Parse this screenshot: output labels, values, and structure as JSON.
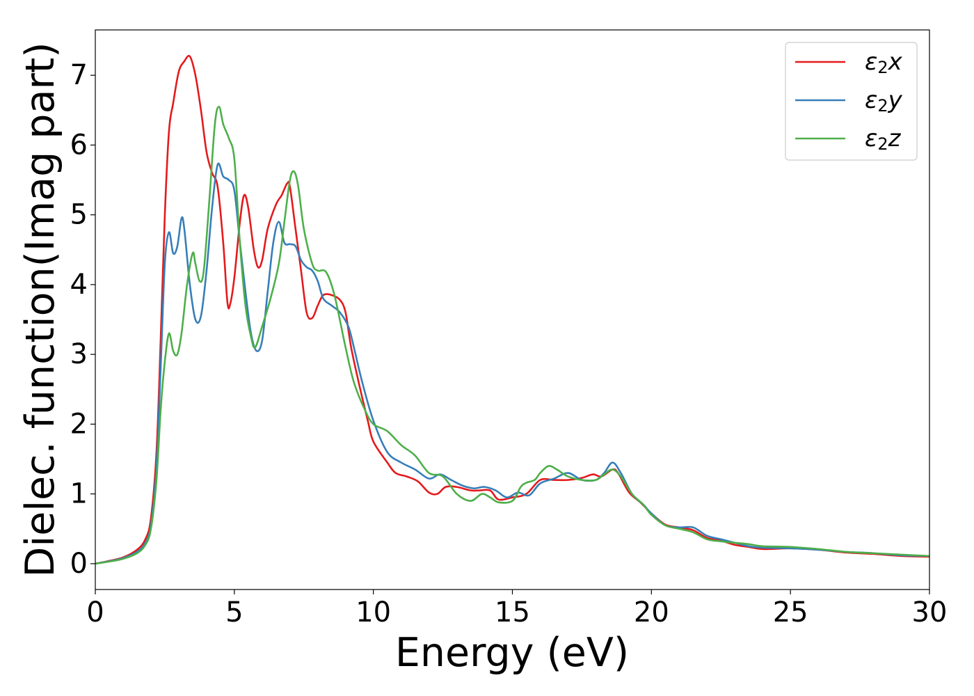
{
  "chart_data": {
    "type": "line",
    "title": "",
    "xlabel": "Energy (eV)",
    "ylabel": "Dielec. function(Imag part)",
    "xlim": [
      0,
      30
    ],
    "ylim": [
      -0.37,
      7.65
    ],
    "xticks": [
      0,
      5,
      10,
      15,
      20,
      25,
      30
    ],
    "yticks": [
      0,
      1,
      2,
      3,
      4,
      5,
      6,
      7
    ],
    "grid": false,
    "legend_position": "top-right",
    "series": [
      {
        "name": "ε2x",
        "legend_base": "ε",
        "legend_sub": "2",
        "legend_tail": "x",
        "color": "#e41a1c",
        "points": [
          [
            0,
            0
          ],
          [
            0.5,
            0.04
          ],
          [
            1.0,
            0.09
          ],
          [
            1.5,
            0.2
          ],
          [
            1.8,
            0.35
          ],
          [
            2.0,
            0.65
          ],
          [
            2.2,
            1.6
          ],
          [
            2.35,
            3.2
          ],
          [
            2.5,
            5.0
          ],
          [
            2.65,
            6.2
          ],
          [
            2.8,
            6.6
          ],
          [
            3.0,
            7.05
          ],
          [
            3.2,
            7.2
          ],
          [
            3.4,
            7.27
          ],
          [
            3.6,
            7.0
          ],
          [
            3.8,
            6.5
          ],
          [
            4.0,
            5.9
          ],
          [
            4.2,
            5.6
          ],
          [
            4.4,
            5.4
          ],
          [
            4.6,
            4.6
          ],
          [
            4.75,
            3.75
          ],
          [
            4.85,
            3.72
          ],
          [
            5.0,
            4.1
          ],
          [
            5.2,
            4.9
          ],
          [
            5.35,
            5.28
          ],
          [
            5.5,
            5.1
          ],
          [
            5.7,
            4.5
          ],
          [
            5.85,
            4.25
          ],
          [
            6.0,
            4.35
          ],
          [
            6.2,
            4.8
          ],
          [
            6.5,
            5.15
          ],
          [
            6.7,
            5.28
          ],
          [
            6.9,
            5.45
          ],
          [
            7.0,
            5.4
          ],
          [
            7.2,
            4.8
          ],
          [
            7.4,
            4.2
          ],
          [
            7.6,
            3.6
          ],
          [
            7.8,
            3.52
          ],
          [
            8.0,
            3.7
          ],
          [
            8.2,
            3.85
          ],
          [
            8.5,
            3.85
          ],
          [
            8.8,
            3.78
          ],
          [
            9.0,
            3.6
          ],
          [
            9.2,
            3.1
          ],
          [
            9.5,
            2.55
          ],
          [
            9.8,
            2.05
          ],
          [
            10.0,
            1.75
          ],
          [
            10.5,
            1.45
          ],
          [
            10.8,
            1.3
          ],
          [
            11.2,
            1.25
          ],
          [
            11.6,
            1.18
          ],
          [
            12.0,
            1.02
          ],
          [
            12.3,
            1.0
          ],
          [
            12.6,
            1.1
          ],
          [
            13.0,
            1.1
          ],
          [
            13.5,
            1.05
          ],
          [
            13.8,
            1.05
          ],
          [
            14.2,
            1.05
          ],
          [
            14.5,
            0.92
          ],
          [
            15.0,
            0.95
          ],
          [
            15.5,
            1.0
          ],
          [
            16.0,
            1.2
          ],
          [
            16.5,
            1.2
          ],
          [
            17.0,
            1.2
          ],
          [
            17.5,
            1.23
          ],
          [
            17.9,
            1.28
          ],
          [
            18.2,
            1.25
          ],
          [
            18.6,
            1.35
          ],
          [
            18.8,
            1.3
          ],
          [
            19.2,
            1.02
          ],
          [
            19.6,
            0.88
          ],
          [
            20.0,
            0.72
          ],
          [
            20.5,
            0.56
          ],
          [
            21.0,
            0.52
          ],
          [
            21.5,
            0.48
          ],
          [
            22.0,
            0.37
          ],
          [
            22.5,
            0.33
          ],
          [
            23.0,
            0.27
          ],
          [
            23.5,
            0.24
          ],
          [
            24.0,
            0.21
          ],
          [
            25.0,
            0.22
          ],
          [
            26.0,
            0.2
          ],
          [
            27.0,
            0.16
          ],
          [
            28.0,
            0.14
          ],
          [
            29.0,
            0.11
          ],
          [
            30.0,
            0.1
          ]
        ]
      },
      {
        "name": "ε2y",
        "legend_base": "ε",
        "legend_sub": "2",
        "legend_tail": "y",
        "color": "#377eb8",
        "points": [
          [
            0,
            0
          ],
          [
            0.5,
            0.035
          ],
          [
            1.0,
            0.08
          ],
          [
            1.5,
            0.17
          ],
          [
            1.8,
            0.3
          ],
          [
            2.0,
            0.55
          ],
          [
            2.2,
            1.4
          ],
          [
            2.35,
            2.8
          ],
          [
            2.5,
            4.3
          ],
          [
            2.65,
            4.75
          ],
          [
            2.8,
            4.45
          ],
          [
            2.95,
            4.55
          ],
          [
            3.1,
            4.95
          ],
          [
            3.2,
            4.8
          ],
          [
            3.4,
            4.0
          ],
          [
            3.6,
            3.5
          ],
          [
            3.8,
            3.55
          ],
          [
            4.0,
            4.2
          ],
          [
            4.2,
            5.1
          ],
          [
            4.4,
            5.72
          ],
          [
            4.6,
            5.55
          ],
          [
            4.8,
            5.5
          ],
          [
            5.0,
            5.35
          ],
          [
            5.2,
            4.6
          ],
          [
            5.4,
            3.9
          ],
          [
            5.6,
            3.3
          ],
          [
            5.8,
            3.05
          ],
          [
            6.0,
            3.2
          ],
          [
            6.2,
            3.9
          ],
          [
            6.4,
            4.6
          ],
          [
            6.6,
            4.9
          ],
          [
            6.8,
            4.6
          ],
          [
            7.0,
            4.58
          ],
          [
            7.2,
            4.55
          ],
          [
            7.4,
            4.35
          ],
          [
            7.6,
            4.25
          ],
          [
            7.8,
            4.2
          ],
          [
            8.0,
            4.05
          ],
          [
            8.2,
            3.8
          ],
          [
            8.5,
            3.7
          ],
          [
            8.8,
            3.6
          ],
          [
            9.1,
            3.4
          ],
          [
            9.3,
            3.1
          ],
          [
            9.6,
            2.6
          ],
          [
            10.0,
            2.05
          ],
          [
            10.5,
            1.6
          ],
          [
            11.0,
            1.45
          ],
          [
            11.5,
            1.35
          ],
          [
            12.0,
            1.22
          ],
          [
            12.4,
            1.28
          ],
          [
            12.8,
            1.2
          ],
          [
            13.2,
            1.12
          ],
          [
            13.6,
            1.08
          ],
          [
            14.0,
            1.1
          ],
          [
            14.4,
            1.05
          ],
          [
            14.8,
            0.95
          ],
          [
            15.2,
            1.02
          ],
          [
            15.6,
            0.98
          ],
          [
            16.0,
            1.15
          ],
          [
            16.5,
            1.22
          ],
          [
            17.0,
            1.3
          ],
          [
            17.5,
            1.2
          ],
          [
            18.0,
            1.2
          ],
          [
            18.3,
            1.3
          ],
          [
            18.6,
            1.45
          ],
          [
            18.9,
            1.3
          ],
          [
            19.3,
            1.0
          ],
          [
            19.7,
            0.85
          ],
          [
            20.0,
            0.72
          ],
          [
            20.5,
            0.55
          ],
          [
            21.0,
            0.52
          ],
          [
            21.5,
            0.52
          ],
          [
            22.0,
            0.4
          ],
          [
            22.5,
            0.35
          ],
          [
            23.0,
            0.3
          ],
          [
            23.5,
            0.25
          ],
          [
            24.0,
            0.23
          ],
          [
            25.0,
            0.22
          ],
          [
            26.0,
            0.2
          ],
          [
            27.0,
            0.17
          ],
          [
            28.0,
            0.15
          ],
          [
            29.0,
            0.12
          ],
          [
            30.0,
            0.11
          ]
        ]
      },
      {
        "name": "ε2z",
        "legend_base": "ε",
        "legend_sub": "2",
        "legend_tail": "z",
        "color": "#4daf4a",
        "points": [
          [
            0,
            0
          ],
          [
            0.5,
            0.03
          ],
          [
            1.0,
            0.07
          ],
          [
            1.5,
            0.15
          ],
          [
            1.8,
            0.27
          ],
          [
            2.0,
            0.5
          ],
          [
            2.2,
            1.2
          ],
          [
            2.35,
            2.2
          ],
          [
            2.5,
            2.9
          ],
          [
            2.65,
            3.3
          ],
          [
            2.8,
            3.05
          ],
          [
            2.95,
            3.0
          ],
          [
            3.1,
            3.3
          ],
          [
            3.3,
            4.0
          ],
          [
            3.5,
            4.45
          ],
          [
            3.6,
            4.3
          ],
          [
            3.75,
            4.05
          ],
          [
            3.9,
            4.2
          ],
          [
            4.1,
            5.2
          ],
          [
            4.3,
            6.3
          ],
          [
            4.45,
            6.55
          ],
          [
            4.6,
            6.3
          ],
          [
            4.8,
            6.1
          ],
          [
            5.0,
            5.8
          ],
          [
            5.2,
            4.6
          ],
          [
            5.4,
            3.7
          ],
          [
            5.6,
            3.25
          ],
          [
            5.75,
            3.1
          ],
          [
            6.0,
            3.4
          ],
          [
            6.3,
            3.8
          ],
          [
            6.6,
            4.3
          ],
          [
            6.8,
            4.9
          ],
          [
            7.0,
            5.5
          ],
          [
            7.15,
            5.62
          ],
          [
            7.3,
            5.4
          ],
          [
            7.5,
            4.8
          ],
          [
            7.8,
            4.3
          ],
          [
            8.0,
            4.2
          ],
          [
            8.3,
            4.18
          ],
          [
            8.6,
            3.85
          ],
          [
            9.0,
            3.1
          ],
          [
            9.3,
            2.6
          ],
          [
            9.7,
            2.2
          ],
          [
            10.0,
            2.0
          ],
          [
            10.5,
            1.9
          ],
          [
            11.0,
            1.7
          ],
          [
            11.5,
            1.55
          ],
          [
            12.0,
            1.3
          ],
          [
            12.5,
            1.25
          ],
          [
            13.0,
            1.0
          ],
          [
            13.5,
            0.9
          ],
          [
            13.9,
            1.0
          ],
          [
            14.2,
            0.95
          ],
          [
            14.5,
            0.88
          ],
          [
            15.0,
            0.9
          ],
          [
            15.3,
            1.1
          ],
          [
            15.5,
            1.16
          ],
          [
            15.8,
            1.2
          ],
          [
            16.0,
            1.3
          ],
          [
            16.3,
            1.4
          ],
          [
            16.6,
            1.35
          ],
          [
            17.0,
            1.25
          ],
          [
            17.5,
            1.2
          ],
          [
            18.0,
            1.2
          ],
          [
            18.3,
            1.28
          ],
          [
            18.6,
            1.35
          ],
          [
            18.9,
            1.25
          ],
          [
            19.3,
            1.0
          ],
          [
            19.7,
            0.85
          ],
          [
            20.0,
            0.7
          ],
          [
            20.5,
            0.55
          ],
          [
            21.0,
            0.5
          ],
          [
            21.5,
            0.45
          ],
          [
            22.0,
            0.35
          ],
          [
            22.5,
            0.32
          ],
          [
            23.0,
            0.3
          ],
          [
            23.5,
            0.28
          ],
          [
            24.0,
            0.25
          ],
          [
            25.0,
            0.24
          ],
          [
            26.0,
            0.21
          ],
          [
            27.0,
            0.17
          ],
          [
            28.0,
            0.15
          ],
          [
            29.0,
            0.13
          ],
          [
            30.0,
            0.11
          ]
        ]
      }
    ]
  }
}
